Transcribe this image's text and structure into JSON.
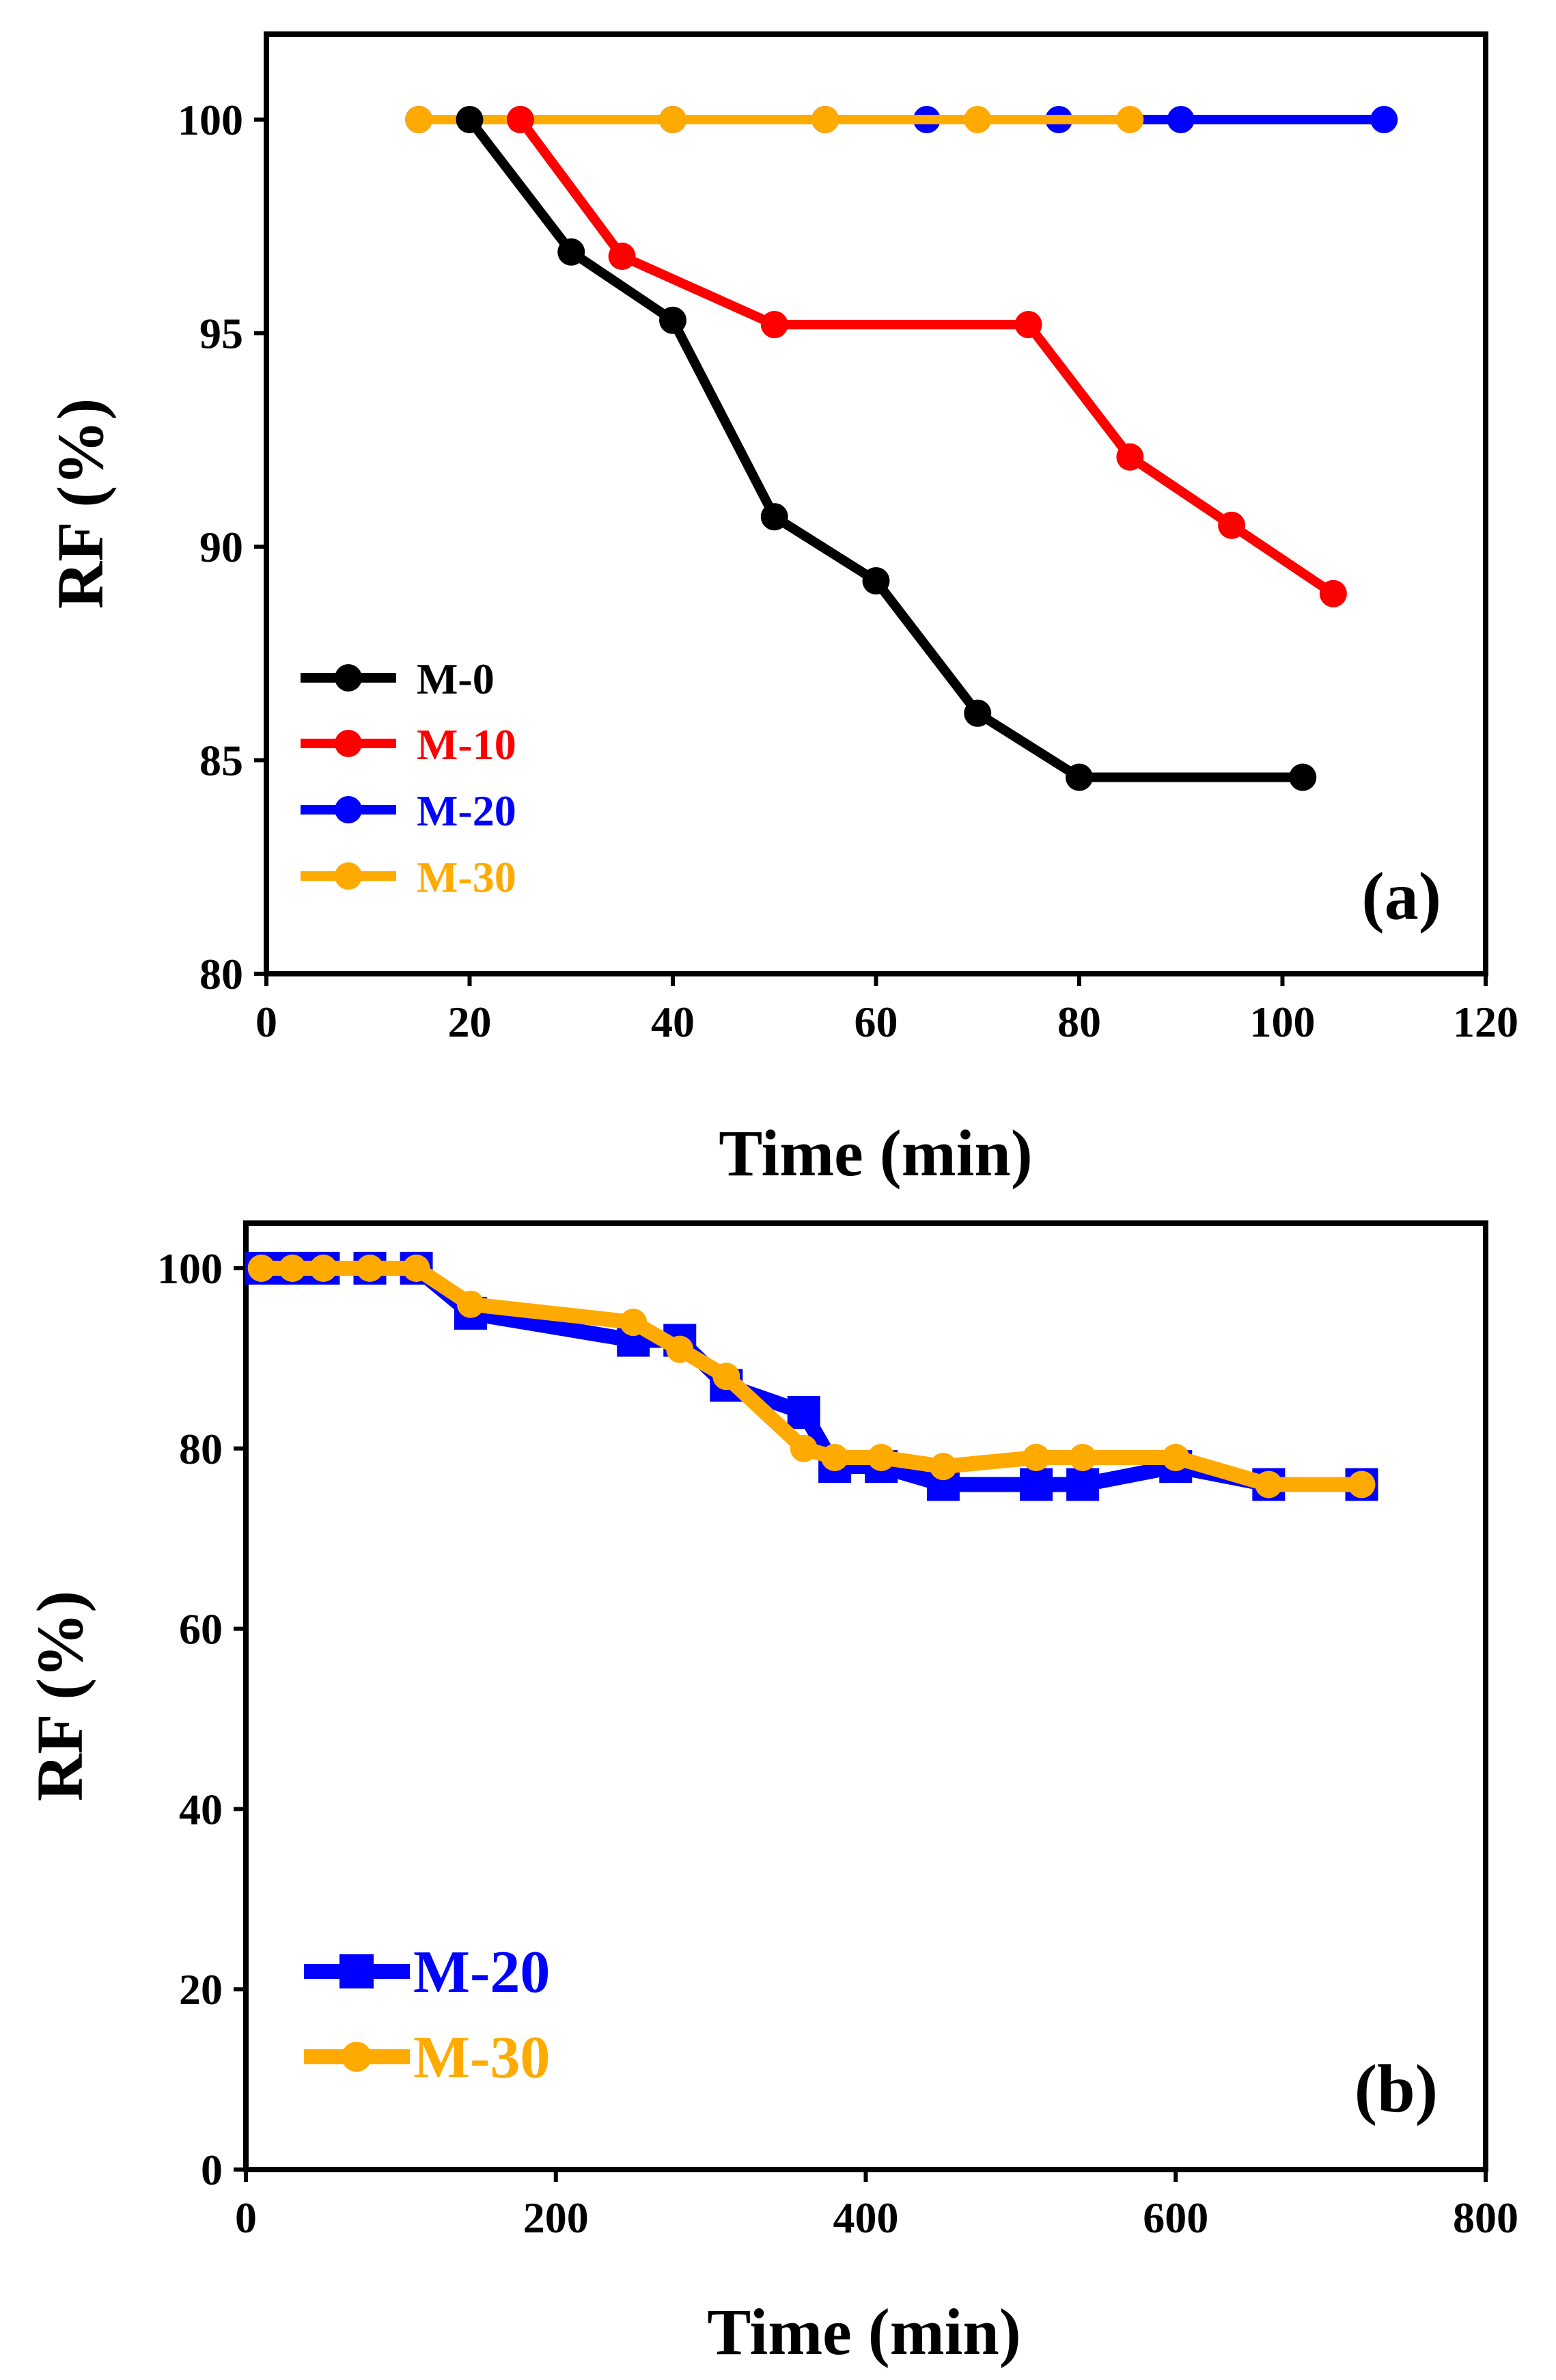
{
  "colors": {
    "M-0": "#000000",
    "M-10": "#ff0000",
    "M-20": "#0000ff",
    "M-30": "#ffaa00"
  },
  "chart_data": [
    {
      "panel": "(a)",
      "type": "line",
      "xlabel": "Time (min)",
      "ylabel": "RF (%)",
      "xlim": [
        0,
        120
      ],
      "ylim": [
        80,
        102
      ],
      "xticks": [
        0,
        20,
        40,
        60,
        80,
        100,
        120
      ],
      "yticks": [
        80,
        85,
        90,
        95,
        100
      ],
      "legend_position": "bottom-left",
      "series": [
        {
          "name": "M-0",
          "marker": "circle",
          "x": [
            20,
            30,
            40,
            50,
            60,
            70,
            80,
            102
          ],
          "y": [
            100,
            96.9,
            95.3,
            90.7,
            89.2,
            86.1,
            84.6,
            84.6
          ]
        },
        {
          "name": "M-10",
          "marker": "circle",
          "x": [
            25,
            35,
            50,
            75,
            85,
            95,
            105
          ],
          "y": [
            100,
            96.8,
            95.2,
            95.2,
            92.1,
            90.5,
            88.9
          ]
        },
        {
          "name": "M-20",
          "marker": "circle",
          "x": [
            15,
            25,
            40,
            55,
            65,
            78,
            90,
            110
          ],
          "y": [
            100,
            100,
            100,
            100,
            100,
            100,
            100,
            100
          ]
        },
        {
          "name": "M-30",
          "marker": "circle",
          "x": [
            15,
            25,
            40,
            55,
            70,
            85
          ],
          "y": [
            100,
            100,
            100,
            100,
            100,
            100
          ]
        }
      ]
    },
    {
      "panel": "(b)",
      "type": "line",
      "xlabel": "Time (min)",
      "ylabel": "RF (%)",
      "xlim": [
        0,
        800
      ],
      "ylim": [
        0,
        105
      ],
      "xticks": [
        0,
        200,
        400,
        600,
        800
      ],
      "yticks": [
        0,
        20,
        40,
        60,
        80,
        100
      ],
      "legend_position": "bottom-left",
      "series": [
        {
          "name": "M-20",
          "marker": "square",
          "x": [
            10,
            30,
            50,
            80,
            110,
            145,
            250,
            280,
            310,
            360,
            380,
            410,
            450,
            510,
            540,
            600,
            660,
            720
          ],
          "y": [
            100,
            100,
            100,
            100,
            100,
            95,
            92,
            92,
            87,
            84,
            78,
            78,
            76,
            76,
            76,
            78,
            76,
            76
          ]
        },
        {
          "name": "M-30",
          "marker": "circle",
          "x": [
            10,
            30,
            50,
            80,
            110,
            145,
            250,
            280,
            310,
            360,
            380,
            410,
            450,
            510,
            540,
            600,
            660,
            720
          ],
          "y": [
            100,
            100,
            100,
            100,
            100,
            96,
            94,
            91,
            88,
            80,
            79,
            79,
            78,
            79,
            79,
            79,
            76,
            76
          ]
        }
      ]
    }
  ]
}
